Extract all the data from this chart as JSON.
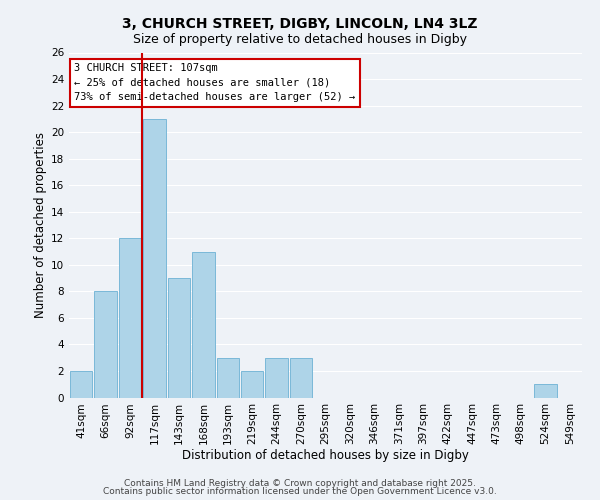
{
  "title": "3, CHURCH STREET, DIGBY, LINCOLN, LN4 3LZ",
  "subtitle": "Size of property relative to detached houses in Digby",
  "xlabel": "Distribution of detached houses by size in Digby",
  "ylabel": "Number of detached properties",
  "bin_labels": [
    "41sqm",
    "66sqm",
    "92sqm",
    "117sqm",
    "143sqm",
    "168sqm",
    "193sqm",
    "219sqm",
    "244sqm",
    "270sqm",
    "295sqm",
    "320sqm",
    "346sqm",
    "371sqm",
    "397sqm",
    "422sqm",
    "447sqm",
    "473sqm",
    "498sqm",
    "524sqm",
    "549sqm"
  ],
  "bar_heights": [
    2,
    8,
    12,
    21,
    9,
    11,
    3,
    2,
    3,
    3,
    0,
    0,
    0,
    0,
    0,
    0,
    0,
    0,
    0,
    1,
    0
  ],
  "bar_color": "#aed4e8",
  "bar_edge_color": "#7ab8d8",
  "vline_x_index": 3,
  "vline_color": "#cc0000",
  "ylim": [
    0,
    26
  ],
  "yticks": [
    0,
    2,
    4,
    6,
    8,
    10,
    12,
    14,
    16,
    18,
    20,
    22,
    24,
    26
  ],
  "annotation_text": "3 CHURCH STREET: 107sqm\n← 25% of detached houses are smaller (18)\n73% of semi-detached houses are larger (52) →",
  "annotation_box_color": "#ffffff",
  "annotation_border_color": "#cc0000",
  "footer_line1": "Contains HM Land Registry data © Crown copyright and database right 2025.",
  "footer_line2": "Contains public sector information licensed under the Open Government Licence v3.0.",
  "background_color": "#eef2f7",
  "grid_color": "#ffffff",
  "title_fontsize": 10,
  "subtitle_fontsize": 9,
  "axis_label_fontsize": 8.5,
  "tick_fontsize": 7.5,
  "annotation_fontsize": 7.5,
  "footer_fontsize": 6.5
}
